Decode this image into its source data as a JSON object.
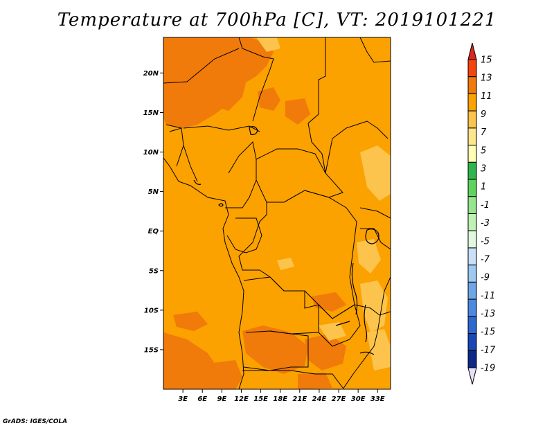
{
  "title": "Temperature at 700hPa [C], VT: 2019101221",
  "credit": "GrADS: IGES/COLA",
  "map": {
    "lon_range": [
      0,
      35
    ],
    "lat_range": [
      -20,
      24.5
    ],
    "lat_ticks": [
      {
        "value": 20,
        "label": "20N"
      },
      {
        "value": 15,
        "label": "15N"
      },
      {
        "value": 10,
        "label": "10N"
      },
      {
        "value": 5,
        "label": "5N"
      },
      {
        "value": 0,
        "label": "EQ"
      },
      {
        "value": -5,
        "label": "5S"
      },
      {
        "value": -10,
        "label": "10S"
      },
      {
        "value": -15,
        "label": "15S"
      }
    ],
    "lon_ticks": [
      {
        "value": 3,
        "label": "3E"
      },
      {
        "value": 6,
        "label": "6E"
      },
      {
        "value": 9,
        "label": "9E"
      },
      {
        "value": 12,
        "label": "12E"
      },
      {
        "value": 15,
        "label": "15E"
      },
      {
        "value": 18,
        "label": "18E"
      },
      {
        "value": 21,
        "label": "21E"
      },
      {
        "value": 24,
        "label": "24E"
      },
      {
        "value": 27,
        "label": "27E"
      },
      {
        "value": 30,
        "label": "30E"
      },
      {
        "value": 33,
        "label": "33E"
      }
    ],
    "base_color": "#fba100",
    "warm_color": "#f07a0a",
    "cool_color": "#fcc44c"
  },
  "colorbar": {
    "labels": [
      "15",
      "13",
      "11",
      "9",
      "7",
      "5",
      "3",
      "1",
      "-1",
      "-3",
      "-5",
      "-7",
      "-9",
      "-11",
      "-13",
      "-15",
      "-17",
      "-19"
    ],
    "colors": [
      "#f5450f",
      "#f07a0a",
      "#fba100",
      "#fcc44c",
      "#fee68c",
      "#fefeb4",
      "#2eb64e",
      "#5ed45e",
      "#96e68e",
      "#bef2b2",
      "#e0f8e0",
      "#c8e0f8",
      "#9cc8f2",
      "#6ea6e8",
      "#4c8ae0",
      "#2c68d2",
      "#1846b4",
      "#0c2888",
      "#020e5a"
    ],
    "top_color": "#d8281e",
    "bottom_color": "#e8e0f8"
  }
}
